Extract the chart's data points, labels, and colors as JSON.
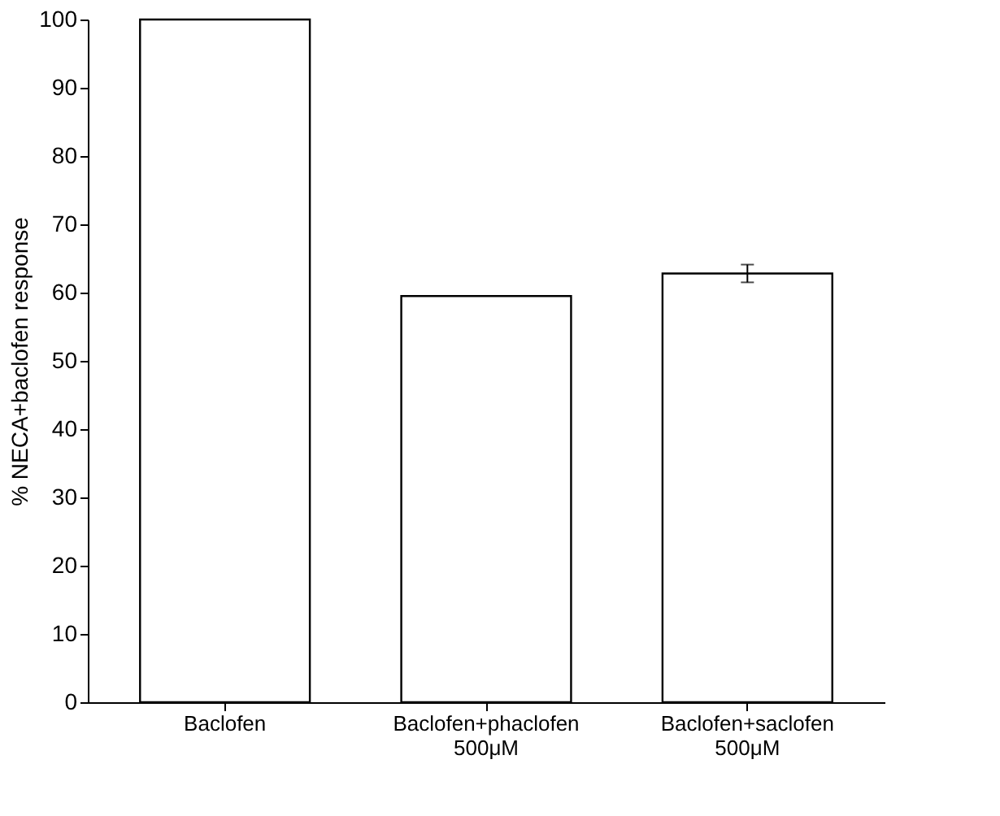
{
  "chart_data": {
    "type": "bar",
    "ylabel": "% NECA+baclofen response",
    "categories": [
      "Baclofen",
      "Baclofen+phaclofen\n500μM",
      "Baclofen+saclofen\n500μM"
    ],
    "values": [
      100,
      59.5,
      62.8
    ],
    "errors": [
      null,
      null,
      1.3
    ],
    "color": "#ffffff",
    "ylim": [
      0,
      100
    ],
    "yticks": [
      0,
      10,
      20,
      30,
      40,
      50,
      60,
      70,
      80,
      90,
      100
    ],
    "grid": false
  }
}
